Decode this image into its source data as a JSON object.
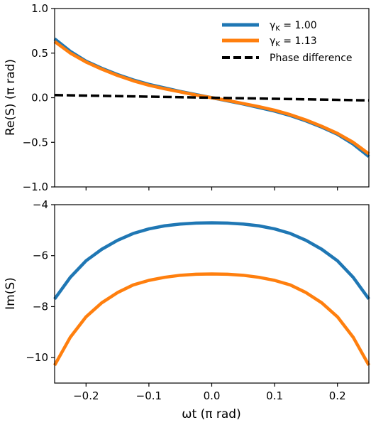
{
  "chart_data": [
    {
      "type": "line",
      "ylabel": "Re(S) (π rad)",
      "xlim": [
        -0.25,
        0.25
      ],
      "ylim": [
        -1.0,
        1.0
      ],
      "xticks": [
        -0.2,
        -0.1,
        0.0,
        0.1,
        0.2
      ],
      "yticks": [
        "-1.0",
        "-0.5",
        "0.0",
        "0.5",
        "1.0"
      ],
      "ytick_values": [
        -1.0,
        -0.5,
        0.0,
        0.5,
        1.0
      ],
      "legend_position": "top-right",
      "x": [
        -0.25,
        -0.225,
        -0.2,
        -0.175,
        -0.15,
        -0.125,
        -0.1,
        -0.075,
        -0.05,
        -0.025,
        0.0,
        0.025,
        0.05,
        0.075,
        0.1,
        0.125,
        0.15,
        0.175,
        0.2,
        0.225,
        0.25
      ],
      "series": [
        {
          "name": "γK = 1.00",
          "color": "#1f77b4",
          "style": "solid",
          "values": [
            0.66,
            0.52,
            0.41,
            0.33,
            0.26,
            0.2,
            0.15,
            0.11,
            0.07,
            0.035,
            0.0,
            -0.035,
            -0.07,
            -0.11,
            -0.15,
            -0.2,
            -0.26,
            -0.33,
            -0.41,
            -0.52,
            -0.66
          ]
        },
        {
          "name": "γK = 1.13",
          "color": "#ff7f0e",
          "style": "solid",
          "values": [
            0.63,
            0.5,
            0.4,
            0.32,
            0.25,
            0.19,
            0.14,
            0.1,
            0.065,
            0.03,
            0.0,
            -0.03,
            -0.065,
            -0.1,
            -0.14,
            -0.19,
            -0.25,
            -0.32,
            -0.4,
            -0.5,
            -0.63
          ]
        },
        {
          "name": "Phase difference",
          "color": "#000000",
          "style": "dashed",
          "values": [
            0.03,
            0.027,
            0.024,
            0.021,
            0.018,
            0.015,
            0.012,
            0.009,
            0.006,
            0.003,
            0.0,
            -0.003,
            -0.006,
            -0.009,
            -0.012,
            -0.015,
            -0.018,
            -0.021,
            -0.024,
            -0.027,
            -0.03
          ]
        }
      ]
    },
    {
      "type": "line",
      "xlabel": "ωt (π rad)",
      "ylabel": "Im(S)",
      "xlim": [
        -0.25,
        0.25
      ],
      "ylim": [
        -11.0,
        -4.0
      ],
      "xticks": [
        "−0.2",
        "−0.1",
        "0.0",
        "0.1",
        "0.2"
      ],
      "xtick_values": [
        -0.2,
        -0.1,
        0.0,
        0.1,
        0.2
      ],
      "yticks": [
        "-10",
        "-8",
        "-6",
        "-4"
      ],
      "ytick_values": [
        -10,
        -8,
        -6,
        -4
      ],
      "x": [
        -0.25,
        -0.225,
        -0.2,
        -0.175,
        -0.15,
        -0.125,
        -0.1,
        -0.075,
        -0.05,
        -0.025,
        0.0,
        0.025,
        0.05,
        0.075,
        0.1,
        0.125,
        0.15,
        0.175,
        0.2,
        0.225,
        0.25
      ],
      "series": [
        {
          "name": "γK = 1.00",
          "color": "#1f77b4",
          "values": [
            -7.7,
            -6.85,
            -6.2,
            -5.75,
            -5.4,
            -5.13,
            -4.95,
            -4.83,
            -4.76,
            -4.72,
            -4.71,
            -4.72,
            -4.76,
            -4.83,
            -4.95,
            -5.13,
            -5.4,
            -5.75,
            -6.2,
            -6.85,
            -7.7
          ]
        },
        {
          "name": "γK = 1.13",
          "color": "#ff7f0e",
          "values": [
            -10.3,
            -9.2,
            -8.4,
            -7.85,
            -7.45,
            -7.15,
            -6.97,
            -6.85,
            -6.77,
            -6.73,
            -6.72,
            -6.73,
            -6.77,
            -6.85,
            -6.97,
            -7.15,
            -7.45,
            -7.85,
            -8.4,
            -9.2,
            -10.3
          ]
        }
      ]
    }
  ]
}
